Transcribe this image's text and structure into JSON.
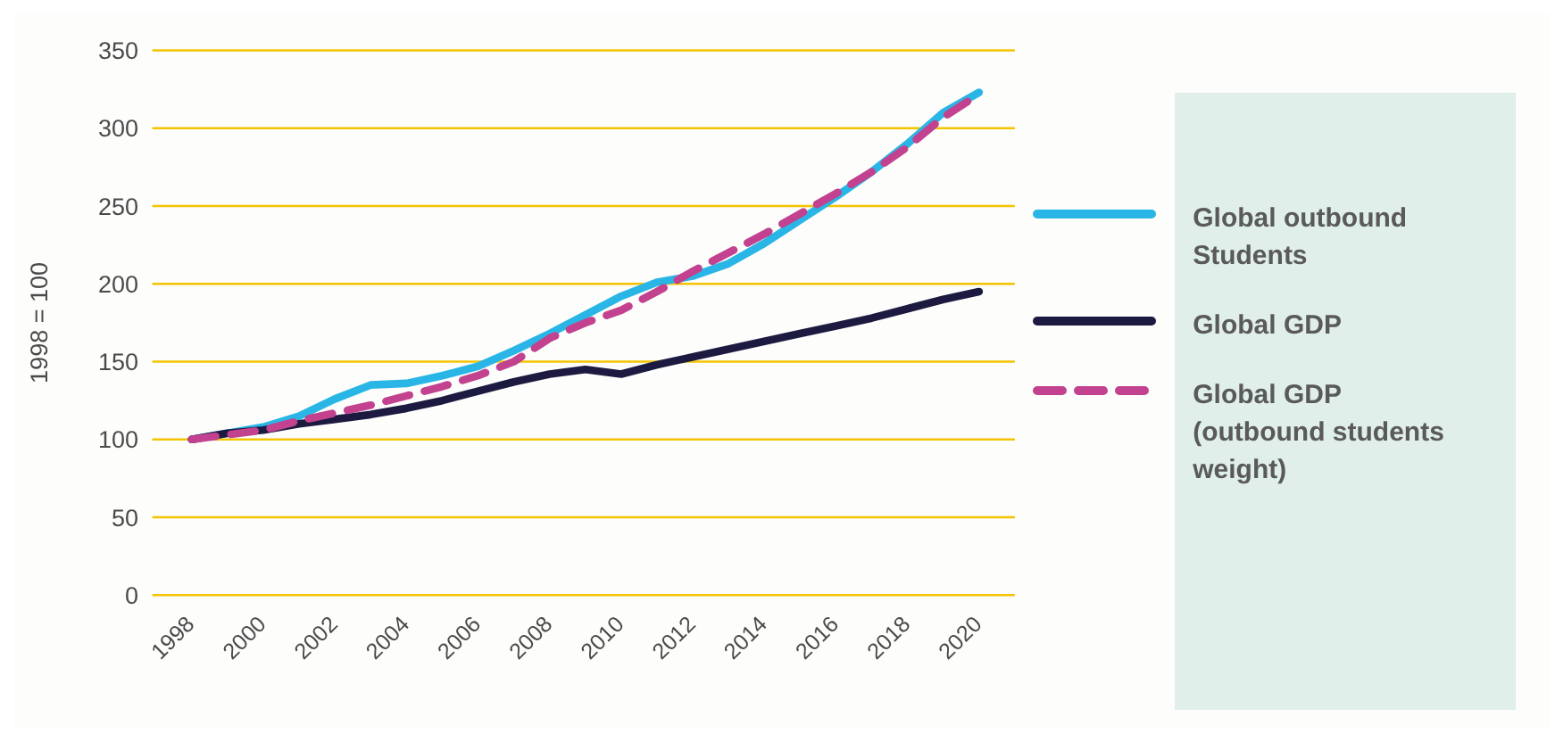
{
  "chart_data": {
    "type": "line",
    "ylabel": "1998 = 100",
    "x": [
      1998,
      1999,
      2000,
      2001,
      2002,
      2003,
      2004,
      2005,
      2006,
      2007,
      2008,
      2009,
      2010,
      2011,
      2012,
      2013,
      2014,
      2015,
      2016,
      2017,
      2018,
      2019,
      2020
    ],
    "xlim": [
      1996.9,
      2021
    ],
    "xticks": [
      1998,
      2000,
      2002,
      2004,
      2006,
      2008,
      2010,
      2012,
      2014,
      2016,
      2018,
      2020
    ],
    "ylim": [
      0,
      350
    ],
    "yticks": [
      0,
      50,
      100,
      150,
      200,
      250,
      300,
      350
    ],
    "grid": "y",
    "legend": "right",
    "marker": "none",
    "series": [
      {
        "name": "Global outbound Students",
        "color": "#29b6e6",
        "line_style": "solid",
        "values": [
          100,
          104,
          108,
          115,
          126,
          135,
          136,
          141,
          147,
          157,
          168,
          180,
          192,
          201,
          205,
          213,
          226,
          241,
          256,
          272,
          290,
          310,
          323
        ]
      },
      {
        "name": "Global GDP",
        "color": "#1c1a40",
        "line_style": "solid",
        "values": [
          100,
          104,
          106,
          110,
          113,
          116,
          120,
          125,
          131,
          137,
          142,
          145,
          142,
          148,
          153,
          158,
          163,
          168,
          173,
          178,
          184,
          190,
          195
        ]
      },
      {
        "name": "Global GDP (outbound students weight)",
        "color": "#c2428f",
        "line_style": "dashed",
        "values": [
          100,
          103,
          106,
          112,
          117,
          122,
          128,
          134,
          141,
          150,
          165,
          175,
          183,
          195,
          208,
          220,
          232,
          245,
          258,
          272,
          288,
          307,
          322
        ]
      }
    ]
  }
}
